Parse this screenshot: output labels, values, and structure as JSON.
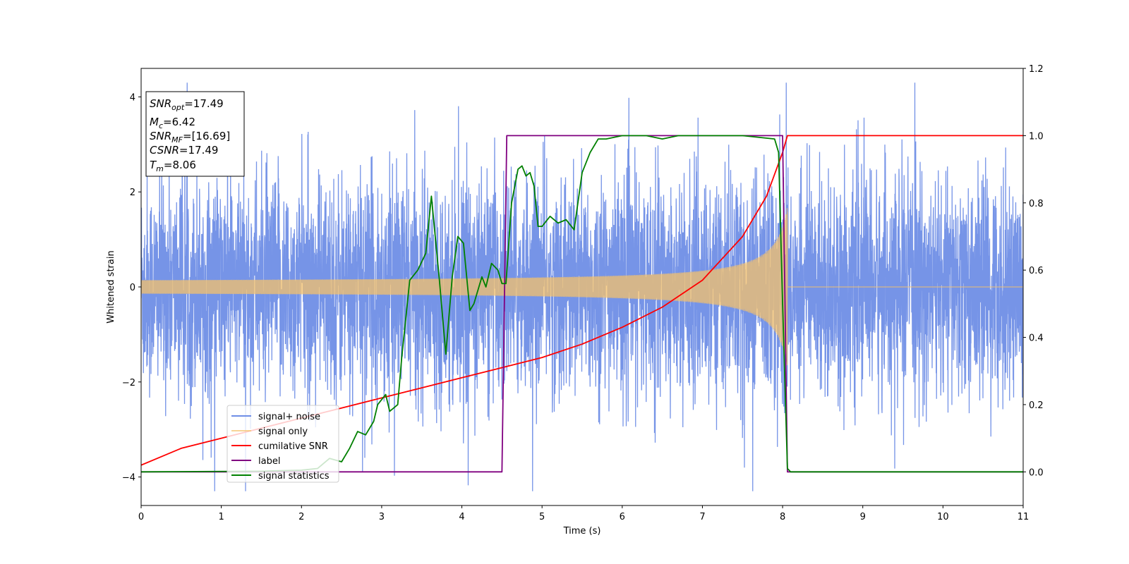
{
  "chart_data": {
    "type": "line",
    "xlabel": "Time (s)",
    "ylabel": "Whitened strain",
    "xlim": [
      0,
      11
    ],
    "ylim_left": [
      -4.6,
      4.6
    ],
    "ylim_right": [
      -0.1,
      1.2
    ],
    "x_ticks": [
      "0",
      "1",
      "2",
      "3",
      "4",
      "5",
      "6",
      "7",
      "8",
      "9",
      "10",
      "11"
    ],
    "y_ticks_left": [
      "-4",
      "-2",
      "0",
      "2",
      "4"
    ],
    "y_ticks_right": [
      "0.0",
      "0.2",
      "0.4",
      "0.6",
      "0.8",
      "1.0",
      "1.2"
    ],
    "grid": false,
    "legend_position": "lower-left",
    "info_box": {
      "snr_opt": {
        "sym": "SNR",
        "sub": "opt",
        "value": "=17.49"
      },
      "mc": {
        "sym": "M",
        "sub": "c",
        "value": "=6.42"
      },
      "snr_mf": {
        "sym": "SNR",
        "sub": "MF",
        "value": "=[16.69]"
      },
      "csnr": {
        "sym": "CSNR",
        "value": "=17.49"
      },
      "tm": {
        "sym": "T",
        "sub": "m",
        "value": "=8.06"
      }
    },
    "series": [
      {
        "name": "signal+ noise",
        "color": "#6f8ee6",
        "axis": "left",
        "noise_sigma": 1.1,
        "t_merge": 8.06
      },
      {
        "name": "signal only",
        "color": "#f5c26b",
        "axis": "left",
        "start_amplitude": 0.1,
        "peak_amplitude": 1.7,
        "t_merge": 8.06
      },
      {
        "name": "cumilative SNR",
        "color": "#ff0000",
        "axis": "right",
        "x": [
          0,
          0.5,
          1,
          1.5,
          2,
          2.5,
          3,
          3.5,
          4,
          4.5,
          5,
          5.5,
          6,
          6.5,
          7,
          7.5,
          7.8,
          8.0,
          8.06,
          8.1,
          11
        ],
        "y": [
          0.02,
          0.07,
          0.1,
          0.13,
          0.16,
          0.19,
          0.22,
          0.25,
          0.28,
          0.31,
          0.34,
          0.38,
          0.43,
          0.49,
          0.57,
          0.7,
          0.82,
          0.95,
          1.0,
          1.0,
          1.0
        ]
      },
      {
        "name": "label",
        "color": "#800080",
        "axis": "right",
        "x": [
          0,
          4.5,
          4.56,
          8.0,
          8.06,
          11
        ],
        "y": [
          0.0,
          0.0,
          1.0,
          1.0,
          0.0,
          0.0
        ]
      },
      {
        "name": "signal statistics",
        "color": "#008000",
        "axis": "right",
        "x": [
          0,
          1.5,
          2.0,
          2.2,
          2.35,
          2.5,
          2.6,
          2.7,
          2.8,
          2.9,
          2.95,
          3.05,
          3.1,
          3.2,
          3.25,
          3.35,
          3.45,
          3.55,
          3.62,
          3.72,
          3.8,
          3.88,
          3.95,
          4.02,
          4.1,
          4.15,
          4.25,
          4.3,
          4.37,
          4.45,
          4.5,
          4.55,
          4.62,
          4.7,
          4.75,
          4.8,
          4.85,
          4.9,
          4.95,
          5.0,
          5.1,
          5.2,
          5.3,
          5.4,
          5.5,
          5.6,
          5.7,
          5.8,
          6.0,
          6.3,
          6.5,
          6.7,
          7.0,
          7.5,
          7.9,
          7.95,
          8.0,
          8.06,
          8.1,
          8.2,
          11
        ],
        "y": [
          0.0,
          0.002,
          0.005,
          0.01,
          0.04,
          0.03,
          0.07,
          0.12,
          0.11,
          0.15,
          0.2,
          0.23,
          0.18,
          0.2,
          0.34,
          0.57,
          0.6,
          0.65,
          0.82,
          0.57,
          0.35,
          0.58,
          0.7,
          0.68,
          0.48,
          0.5,
          0.58,
          0.55,
          0.62,
          0.6,
          0.56,
          0.56,
          0.8,
          0.9,
          0.91,
          0.88,
          0.89,
          0.85,
          0.73,
          0.73,
          0.76,
          0.74,
          0.75,
          0.72,
          0.89,
          0.95,
          0.99,
          0.99,
          1.0,
          1.0,
          0.99,
          1.0,
          1.0,
          1.0,
          0.99,
          0.95,
          0.5,
          0.01,
          0.0,
          0.0,
          0.0
        ]
      }
    ]
  }
}
